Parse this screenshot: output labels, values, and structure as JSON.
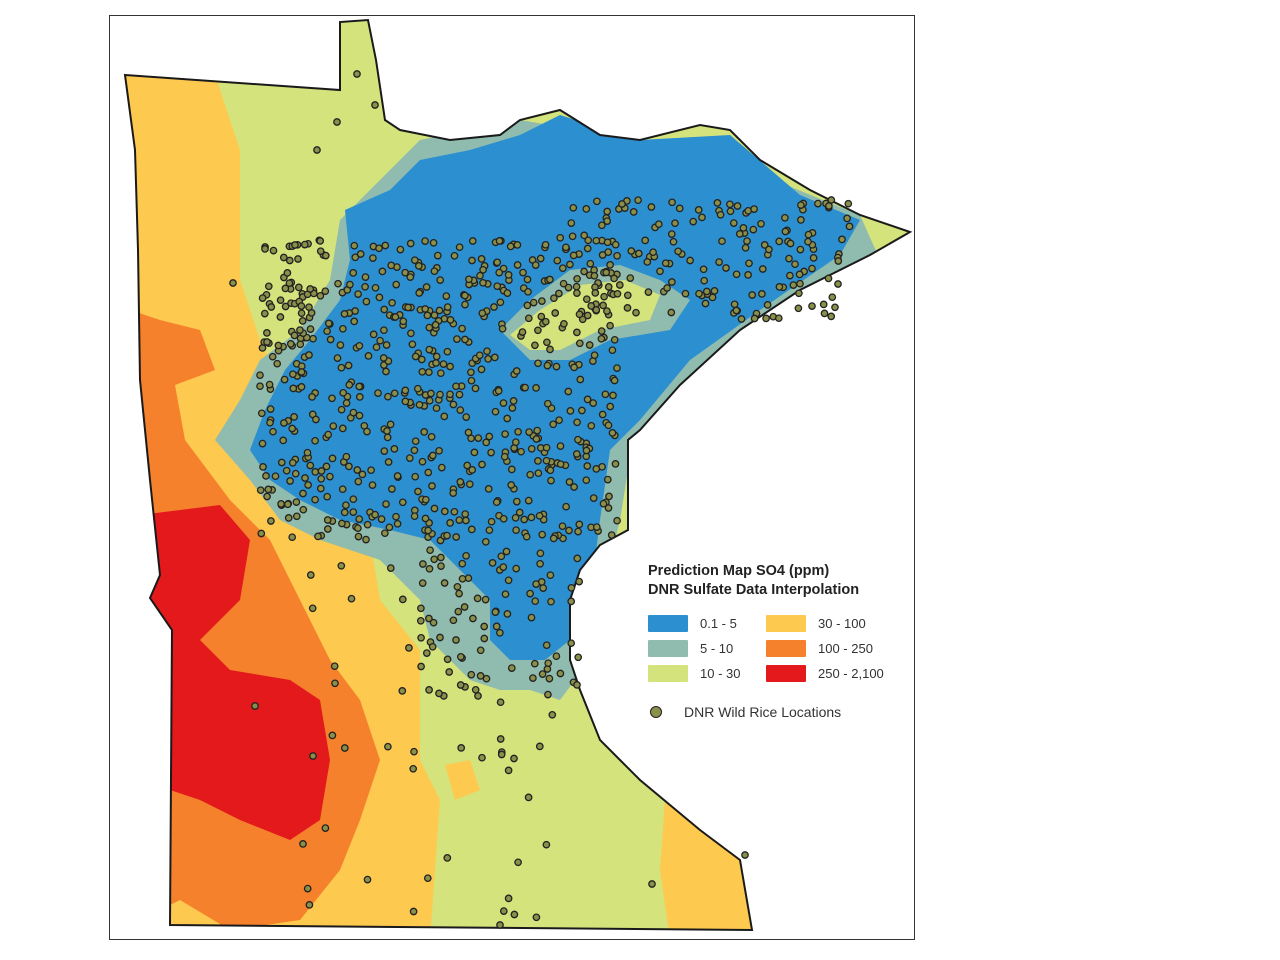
{
  "map": {
    "region": "Minnesota",
    "legend": {
      "title_line1": "Prediction Map SO4 (ppm)",
      "title_line2": "DNR Sulfate Data Interpolation",
      "classes": [
        {
          "label": "0.1 - 5",
          "color": "#2b8fd0"
        },
        {
          "label": "5 - 10",
          "color": "#8fbcae"
        },
        {
          "label": "10 - 30",
          "color": "#d4e37c"
        },
        {
          "label": "30 - 100",
          "color": "#fdc94e"
        },
        {
          "label": "100 - 250",
          "color": "#f6812c"
        },
        {
          "label": "250 - 2,100",
          "color": "#e3191b"
        }
      ],
      "points_label": "DNR Wild Rice Locations",
      "points_color": "#8a8f4a"
    }
  }
}
